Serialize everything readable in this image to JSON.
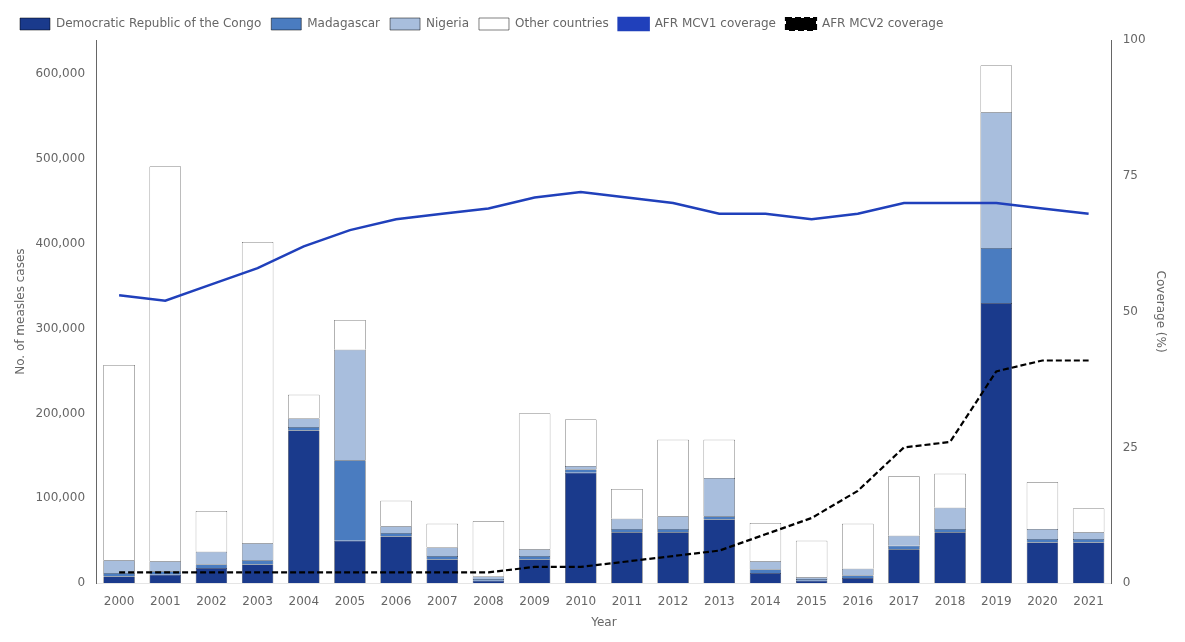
{
  "chart_data": {
    "type": "bar",
    "stacked": true,
    "grid": false,
    "legend": "upper left",
    "xlabel": "Year",
    "ylabel": "No. of measles cases",
    "y2label": "Coverage (%)",
    "categories": [
      2000,
      2001,
      2002,
      2003,
      2004,
      2005,
      2006,
      2007,
      2008,
      2009,
      2010,
      2011,
      2012,
      2013,
      2014,
      2015,
      2016,
      2017,
      2018,
      2019,
      2020,
      2021
    ],
    "series": [
      {
        "name": "Democratic Republic of the Congo",
        "color": "#1a3a8c",
        "values": [
          8000,
          10000,
          18000,
          22000,
          180000,
          50000,
          55000,
          28000,
          3000,
          28000,
          130000,
          60000,
          60000,
          75000,
          12000,
          3000,
          6000,
          40000,
          60000,
          330000,
          48000,
          48000
        ]
      },
      {
        "name": "Madagascar",
        "color": "#4a7cc0",
        "values": [
          4000,
          4000,
          4000,
          5000,
          4000,
          95000,
          4000,
          4000,
          2000,
          4000,
          4000,
          4000,
          4000,
          4000,
          4000,
          2000,
          3000,
          4000,
          4000,
          65000,
          4000,
          4000
        ]
      },
      {
        "name": "Nigeria",
        "color": "#a8bedd",
        "values": [
          15000,
          12000,
          15000,
          20000,
          10000,
          130000,
          8000,
          10000,
          3000,
          8000,
          4000,
          12000,
          15000,
          45000,
          10000,
          2000,
          8000,
          12000,
          25000,
          160000,
          12000,
          8000
        ]
      },
      {
        "name": "Other countries",
        "color": "#ffffff",
        "values": [
          230000,
          465000,
          48000,
          355000,
          28000,
          35000,
          30000,
          28000,
          65000,
          160000,
          55000,
          35000,
          90000,
          45000,
          45000,
          43000,
          53000,
          70000,
          40000,
          55000,
          55000,
          28000
        ]
      },
      {
        "name": "AFR MCV1 coverage",
        "type": "line",
        "axis": "y2",
        "line_style": "solid",
        "color": "#2040bb",
        "values": [
          53,
          52,
          55,
          58,
          62,
          65,
          67,
          68,
          69,
          71,
          72,
          71,
          70,
          68,
          68,
          67,
          68,
          70,
          70,
          70,
          69,
          68
        ]
      },
      {
        "name": "AFR MCV2 coverage",
        "type": "line",
        "axis": "y2",
        "line_style": "dashed",
        "color": "#000000",
        "values": [
          2,
          2,
          2,
          2,
          2,
          2,
          2,
          2,
          2,
          3,
          3,
          4,
          5,
          6,
          9,
          12,
          17,
          25,
          26,
          39,
          41,
          41
        ]
      }
    ],
    "ylim": [
      0,
      640000
    ],
    "yticks": [
      {
        "value": 0,
        "label": "0"
      },
      {
        "value": 100000,
        "label": "100,000"
      },
      {
        "value": 200000,
        "label": "200,000"
      },
      {
        "value": 300000,
        "label": "300,000"
      },
      {
        "value": 400000,
        "label": "400,000"
      },
      {
        "value": 500000,
        "label": "500,000"
      },
      {
        "value": 600000,
        "label": "600,000"
      }
    ],
    "y2lim": [
      0,
      100
    ],
    "y2ticks": [
      0,
      25,
      50,
      75,
      100
    ]
  }
}
